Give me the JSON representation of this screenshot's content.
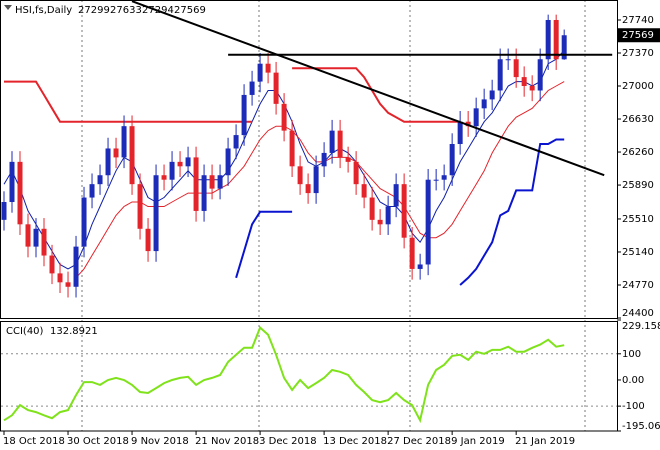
{
  "chart_data": [
    {
      "type": "candlestick",
      "title": "HSI,fs,Daily",
      "categories": [
        "18 Oct 2018",
        null,
        null,
        null,
        null,
        null,
        null,
        null,
        "30 Oct 2018",
        null,
        null,
        null,
        null,
        null,
        null,
        null,
        "9 Nov 2018",
        null,
        null,
        null,
        null,
        null,
        null,
        null,
        "21 Nov 2018",
        null,
        null,
        null,
        null,
        null,
        null,
        null,
        "3 Dec 2018",
        null,
        null,
        null,
        null,
        null,
        null,
        null,
        "13 Dec 2018",
        null,
        null,
        null,
        null,
        null,
        null,
        null,
        "27 Dec 2018",
        null,
        null,
        null,
        null,
        null,
        null,
        null,
        "9 Jan 2019",
        null,
        null,
        null,
        null,
        null,
        null,
        null,
        "21 Jan 2019",
        null,
        null,
        null,
        null,
        null,
        null
      ],
      "open": [
        25500,
        25700,
        26150,
        25450,
        25200,
        25400,
        25100,
        24900,
        24800,
        24750,
        25200,
        25750,
        25900,
        26000,
        26300,
        26200,
        26550,
        25900,
        25400,
        25150,
        26000,
        25950,
        26150,
        26100,
        26200,
        25600,
        26000,
        25850,
        26000,
        26300,
        26450,
        26900,
        27050,
        27250,
        27150,
        26800,
        26500,
        26100,
        25900,
        25800,
        26100,
        26250,
        26500,
        26200,
        26150,
        25900,
        25750,
        25500,
        25450,
        25650,
        25900,
        25300,
        24950,
        25000,
        25950,
        25950,
        26000,
        26350,
        26600,
        26550,
        26750,
        26850,
        26950,
        27300,
        27300,
        27100,
        27000,
        26950,
        27300,
        27740,
        27299
      ],
      "high": [
        25820,
        26270,
        26270,
        25570,
        25520,
        25520,
        25220,
        25020,
        24920,
        25320,
        25870,
        26020,
        26120,
        26420,
        26420,
        26670,
        26670,
        26020,
        25520,
        26120,
        26120,
        26270,
        26270,
        26320,
        26320,
        26120,
        26120,
        26120,
        26420,
        26570,
        27020,
        27170,
        27370,
        27370,
        27270,
        26920,
        26620,
        26220,
        26020,
        26220,
        26370,
        26620,
        26620,
        26320,
        26270,
        26020,
        25870,
        25620,
        25770,
        26020,
        26020,
        25420,
        25120,
        26070,
        26070,
        26120,
        26470,
        26720,
        26720,
        26870,
        26970,
        27070,
        27420,
        27420,
        27420,
        27220,
        27120,
        27420,
        27800,
        27800,
        27633
      ],
      "low": [
        25380,
        25580,
        25330,
        25080,
        25080,
        24980,
        24780,
        24680,
        24630,
        24630,
        25080,
        25630,
        25780,
        25880,
        26080,
        26080,
        25780,
        25280,
        25030,
        25030,
        25830,
        25830,
        25980,
        25980,
        25480,
        25480,
        25730,
        25730,
        25880,
        26180,
        26330,
        26780,
        26930,
        27030,
        26680,
        26380,
        25980,
        25780,
        25680,
        25680,
        25980,
        26130,
        26080,
        26030,
        25780,
        25630,
        25380,
        25330,
        25330,
        25530,
        25180,
        24830,
        24830,
        24880,
        25830,
        25830,
        25880,
        26230,
        26430,
        26430,
        26630,
        26730,
        26830,
        27180,
        26980,
        26880,
        26830,
        26830,
        27180,
        27180,
        27294
      ],
      "close": [
        25700,
        26150,
        25450,
        25200,
        25400,
        25100,
        24900,
        24800,
        24750,
        25200,
        25750,
        25900,
        26000,
        26300,
        26200,
        26550,
        25900,
        25400,
        25150,
        26000,
        25950,
        26150,
        26100,
        26200,
        25600,
        26000,
        25850,
        26000,
        26300,
        26450,
        26900,
        27050,
        27250,
        27150,
        26800,
        26500,
        26100,
        25900,
        25800,
        26100,
        26250,
        26500,
        26200,
        26150,
        25900,
        25750,
        25500,
        25450,
        25650,
        25900,
        25300,
        24950,
        25000,
        25950,
        25950,
        26000,
        26350,
        26600,
        26550,
        26750,
        26850,
        26950,
        27300,
        27300,
        27100,
        27000,
        26950,
        27300,
        27740,
        27300,
        27569
      ],
      "up_color": "#1c2bb8",
      "down_color": "#e3242b",
      "lines": [
        {
          "color": "#1020a8",
          "width": 1,
          "values": [
            25900,
            26050,
            25850,
            25600,
            25450,
            25300,
            25150,
            25000,
            24950,
            25000,
            25200,
            25450,
            25650,
            25850,
            26050,
            26200,
            26150,
            25950,
            25750,
            25700,
            25750,
            25850,
            25950,
            26050,
            25950,
            25950,
            25950,
            25950,
            26050,
            26200,
            26400,
            26600,
            26800,
            26950,
            26950,
            26800,
            26600,
            26350,
            26150,
            26100,
            26150,
            26250,
            26300,
            26250,
            26150,
            26000,
            25850,
            25700,
            25650,
            25650,
            25550,
            25350,
            25250,
            25400,
            25600,
            25750,
            25950,
            26150,
            26300,
            26450,
            26600,
            26700,
            26850,
            27000,
            27050,
            27050,
            27000,
            27050,
            27250,
            27300,
            27400
          ]
        },
        {
          "color": "#e3242b",
          "width": 1,
          "values": [
            null,
            null,
            null,
            null,
            null,
            null,
            null,
            null,
            null,
            24850,
            24950,
            25100,
            25250,
            25400,
            25550,
            25650,
            25700,
            25700,
            25650,
            25650,
            25650,
            25700,
            25750,
            25800,
            25800,
            25800,
            25800,
            25850,
            25900,
            26000,
            26100,
            26250,
            26400,
            26500,
            26550,
            26550,
            26500,
            26400,
            26250,
            26150,
            26150,
            26200,
            26200,
            26200,
            26150,
            26050,
            25950,
            25850,
            25800,
            25750,
            25650,
            25500,
            25350,
            25300,
            25300,
            25350,
            25450,
            25600,
            25750,
            25900,
            26050,
            26250,
            26400,
            26550,
            26650,
            26700,
            26750,
            26850,
            26950,
            27000,
            27050
          ]
        },
        {
          "color": "#e3242b",
          "width": 2,
          "values": [
            27050,
            27050,
            27050,
            27050,
            27050,
            26900,
            26750,
            26600,
            26600,
            26600,
            26600,
            26600,
            26600,
            26600,
            26600,
            26600,
            26600,
            26600,
            26600,
            26600,
            26600,
            26600,
            26600,
            26600,
            26600,
            26600,
            26600,
            26600,
            26600,
            26600,
            26600,
            26600,
            null,
            null,
            null,
            null,
            27200,
            27200,
            27200,
            27200,
            27200,
            27200,
            27200,
            27200,
            27200,
            27100,
            26950,
            26800,
            26700,
            26650,
            26600,
            26600,
            26600,
            26600,
            26600,
            26600,
            26600,
            26600,
            null,
            null,
            null,
            null,
            null,
            null,
            null,
            null,
            null,
            null,
            null,
            null,
            null
          ]
        },
        {
          "color": "#0a14d0",
          "width": 2,
          "values": [
            null,
            null,
            null,
            null,
            null,
            null,
            null,
            null,
            null,
            null,
            null,
            null,
            null,
            null,
            null,
            null,
            null,
            null,
            null,
            null,
            null,
            null,
            null,
            null,
            null,
            null,
            null,
            null,
            null,
            24850,
            25150,
            25450,
            25590,
            25590,
            25590,
            25590,
            25590,
            null,
            null,
            null,
            null,
            null,
            null,
            null,
            null,
            null,
            null,
            null,
            null,
            null,
            null,
            null,
            null,
            null,
            null,
            null,
            null,
            24770,
            24850,
            24950,
            25100,
            25250,
            25550,
            25600,
            25830,
            25830,
            25830,
            26350,
            26350,
            26400,
            26400
          ]
        }
      ],
      "trend_lines": [
        {
          "color": "#000000",
          "x": [
            16,
            75
          ],
          "values": [
            27950,
            26000
          ]
        },
        {
          "color": "#000000",
          "x": [
            28,
            76
          ],
          "values": [
            27350,
            27350
          ]
        }
      ],
      "xlim": [
        -0.5,
        76.6
      ],
      "ylim": [
        24400,
        27964
      ],
      "yticks": [
        27740,
        27370,
        27000,
        26630,
        26260,
        25890,
        25510,
        25140,
        24770,
        24400
      ]
    },
    {
      "type": "line",
      "title": "CCI(40)",
      "color": "#7fe21a",
      "values": [
        -154,
        -135,
        -96,
        -115,
        -123,
        -135,
        -146,
        -123,
        -115,
        -58,
        -8,
        -8,
        -19,
        0,
        8,
        0,
        -19,
        -46,
        -50,
        -31,
        -12,
        0,
        8,
        12,
        -19,
        0,
        8,
        19,
        69,
        96,
        123,
        123,
        200,
        173,
        96,
        8,
        -38,
        0,
        -31,
        -12,
        8,
        38,
        31,
        19,
        -19,
        -46,
        -77,
        -85,
        -77,
        -50,
        -77,
        -96,
        -154,
        -19,
        38,
        58,
        92,
        96,
        77,
        108,
        100,
        115,
        115,
        127,
        108,
        108,
        123,
        135,
        154,
        127,
        132.8921
      ],
      "ylim": [
        -195.0611,
        229.1588
      ],
      "yticks": [
        229.1588,
        100,
        {
          "value": 0,
          "label": "0.00"
        },
        -100,
        -195.0611
      ],
      "levels": [
        100,
        -100
      ]
    }
  ]
}
